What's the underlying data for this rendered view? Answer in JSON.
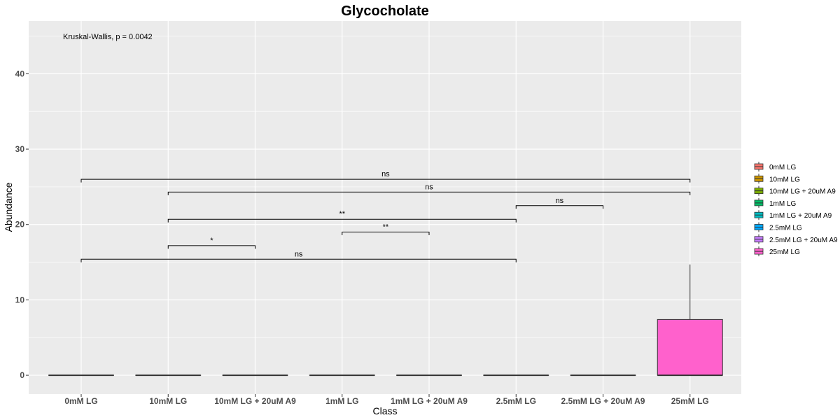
{
  "chart_data": {
    "type": "box",
    "title": "Glycocholate",
    "xlabel": "Class",
    "ylabel": "Abundance",
    "ylim": [
      -2.5,
      47
    ],
    "y_ticks": [
      0,
      10,
      20,
      30,
      40
    ],
    "y_tick_labels": [
      "0",
      "10",
      "20",
      "30",
      "40"
    ],
    "grid": true,
    "legend_position": "right",
    "categories": [
      "0mM LG",
      "10mM LG",
      "10mM LG + 20uM A9",
      "1mM LG",
      "1mM LG + 20uM A9",
      "2.5mM LG",
      "2.5mM LG + 20uM A9",
      "25mM LG"
    ],
    "colors": [
      "#F8766D",
      "#CD9600",
      "#7CAE00",
      "#00BE67",
      "#00BFC4",
      "#00A9FF",
      "#C77CFF",
      "#FF61CC"
    ],
    "boxes": [
      {
        "category": "0mM LG",
        "min": 0,
        "q1": 0,
        "median": 0,
        "q3": 0,
        "max": 0
      },
      {
        "category": "10mM LG",
        "min": 0,
        "q1": 0,
        "median": 0,
        "q3": 0,
        "max": 0
      },
      {
        "category": "10mM LG + 20uM A9",
        "min": 0,
        "q1": 0,
        "median": 0,
        "q3": 0,
        "max": 0
      },
      {
        "category": "1mM LG",
        "min": 0,
        "q1": 0,
        "median": 0,
        "q3": 0,
        "max": 0
      },
      {
        "category": "1mM LG + 20uM A9",
        "min": 0,
        "q1": 0,
        "median": 0,
        "q3": 0,
        "max": 0
      },
      {
        "category": "2.5mM LG",
        "min": 0,
        "q1": 0,
        "median": 0,
        "q3": 0,
        "max": 0
      },
      {
        "category": "2.5mM LG + 20uM A9",
        "min": 0,
        "q1": 0,
        "median": 0,
        "q3": 0,
        "max": 0
      },
      {
        "category": "25mM LG",
        "min": 0,
        "q1": 0,
        "median": 0,
        "q3": 7.4,
        "max": 14.7
      }
    ],
    "annotation": "Kruskal-Wallis, p = 0.0042",
    "comparisons": [
      {
        "from": "0mM LG",
        "to": "25mM LG",
        "y": 26.0,
        "label": "ns"
      },
      {
        "from": "10mM LG",
        "to": "25mM LG",
        "y": 24.3,
        "label": "ns"
      },
      {
        "from": "2.5mM LG",
        "to": "2.5mM LG + 20uM A9",
        "y": 22.5,
        "label": "ns"
      },
      {
        "from": "10mM LG",
        "to": "2.5mM LG",
        "y": 20.7,
        "label": "**"
      },
      {
        "from": "1mM LG",
        "to": "1mM LG + 20uM A9",
        "y": 19.0,
        "label": "**"
      },
      {
        "from": "10mM LG",
        "to": "10mM LG + 20uM A9",
        "y": 17.2,
        "label": "*"
      },
      {
        "from": "0mM LG",
        "to": "2.5mM LG",
        "y": 15.4,
        "label": "ns"
      }
    ]
  }
}
